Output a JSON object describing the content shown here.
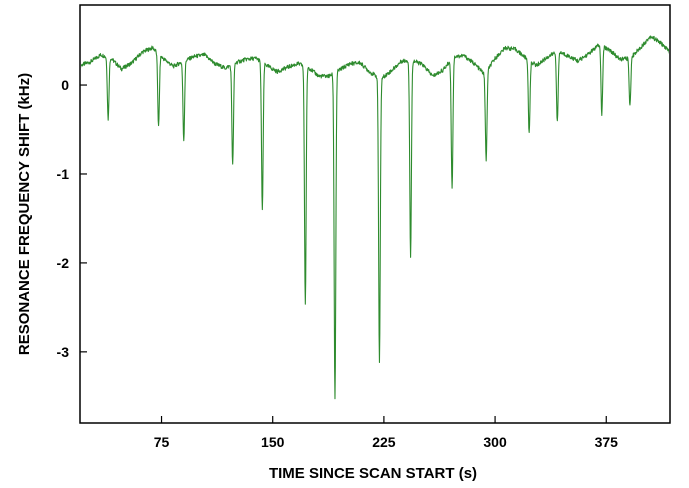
{
  "chart_data": {
    "type": "line",
    "title": "",
    "xlabel": "TIME SINCE SCAN START (s)",
    "ylabel": "RESONANCE FREQUENCY SHIFT (kHz)",
    "xlim": [
      20,
      418
    ],
    "ylim": [
      -3.8,
      0.9
    ],
    "xticks": [
      75,
      150,
      225,
      300,
      375
    ],
    "yticks": [
      0,
      -1,
      -2,
      -3
    ],
    "grid": false,
    "legend": "none",
    "color": "#2e8b2e",
    "baseline": {
      "x": [
        20,
        27,
        34,
        41,
        48,
        55,
        62,
        69,
        76,
        83,
        90,
        97,
        104,
        111,
        118,
        125,
        132,
        139,
        146,
        153,
        160,
        167,
        174,
        181,
        188,
        195,
        202,
        209,
        216,
        223,
        230,
        237,
        244,
        251,
        258,
        265,
        272,
        279,
        286,
        293,
        300,
        307,
        314,
        321,
        328,
        335,
        342,
        349,
        356,
        363,
        370,
        377,
        384,
        391,
        398,
        405,
        412,
        418
      ],
      "y": [
        0.22,
        0.26,
        0.34,
        0.3,
        0.18,
        0.25,
        0.37,
        0.42,
        0.3,
        0.21,
        0.27,
        0.32,
        0.34,
        0.24,
        0.19,
        0.25,
        0.29,
        0.3,
        0.22,
        0.15,
        0.2,
        0.24,
        0.2,
        0.1,
        0.1,
        0.17,
        0.24,
        0.25,
        0.14,
        0.07,
        0.16,
        0.27,
        0.28,
        0.23,
        0.1,
        0.17,
        0.32,
        0.33,
        0.24,
        0.12,
        0.3,
        0.42,
        0.4,
        0.3,
        0.22,
        0.31,
        0.38,
        0.33,
        0.27,
        0.35,
        0.45,
        0.4,
        0.29,
        0.3,
        0.42,
        0.55,
        0.47,
        0.37
      ]
    },
    "dips": [
      {
        "x": 39,
        "min": -0.38
      },
      {
        "x": 73,
        "min": -0.47
      },
      {
        "x": 90,
        "min": -0.62
      },
      {
        "x": 123,
        "min": -0.9
      },
      {
        "x": 143,
        "min": -1.4
      },
      {
        "x": 172,
        "min": -2.47
      },
      {
        "x": 192,
        "min": -3.52
      },
      {
        "x": 222,
        "min": -3.12
      },
      {
        "x": 243,
        "min": -1.93
      },
      {
        "x": 271,
        "min": -1.15
      },
      {
        "x": 294,
        "min": -0.85
      },
      {
        "x": 323,
        "min": -0.55
      },
      {
        "x": 342,
        "min": -0.42
      },
      {
        "x": 372,
        "min": -0.33
      },
      {
        "x": 391,
        "min": -0.23
      }
    ]
  }
}
